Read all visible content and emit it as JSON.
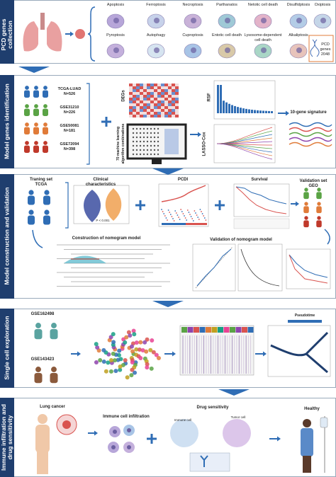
{
  "sections": [
    {
      "title": "PCD genes collection",
      "types": [
        "Apoptosis",
        "Ferroptosis",
        "Necroptosis",
        "Parthanatos",
        "Netotic cell death",
        "Disulfidptosis",
        "Oxiptosis",
        "Pyroptosis",
        "Autophagy",
        "Cuproptosis",
        "Entotic cell death",
        "Lysosome-dependent cell death",
        "Alkaliptosis"
      ],
      "gene_set": "PCD genes 2048"
    },
    {
      "title": "Model genes identification",
      "cohorts": [
        {
          "name": "TCGA-LUAD",
          "n": "N=526"
        },
        {
          "name": "GSE31210",
          "n": "N=226"
        },
        {
          "name": "GSE50081",
          "n": "N=181"
        },
        {
          "name": "GSE72094",
          "n": "N=398"
        }
      ],
      "degs": "DEGs",
      "ml": "70 machine learning algorithm combinations",
      "rsf": "RSF",
      "lasso": "LASSO-Cox",
      "signature": "10-gene signature"
    },
    {
      "title": "Model construction and validation",
      "training": "Traning set TCGA",
      "clinical": "Clinical characteristics",
      "p_value": "P < 0.001",
      "pcdi": "PCDI",
      "survival": "Survival",
      "validation": "Validation set GEO",
      "nomogram": "Construction of nomogram model",
      "nomogram_validation": "Validation of nomogram model"
    },
    {
      "title": "Single cell exploration",
      "datasets": [
        "GSE162498",
        "GSE143423"
      ],
      "pseudotime": "Pseudotime"
    },
    {
      "title": "Immune infiltration and drug sensitivity",
      "lung_cancer": "Lung cancer",
      "immune": "Immune cell infiltration",
      "drug": "Drug sensitivity",
      "healthy": "Healthy",
      "immune_cell": "Immune cell",
      "tumor_cell": "Tumor cell"
    }
  ]
}
